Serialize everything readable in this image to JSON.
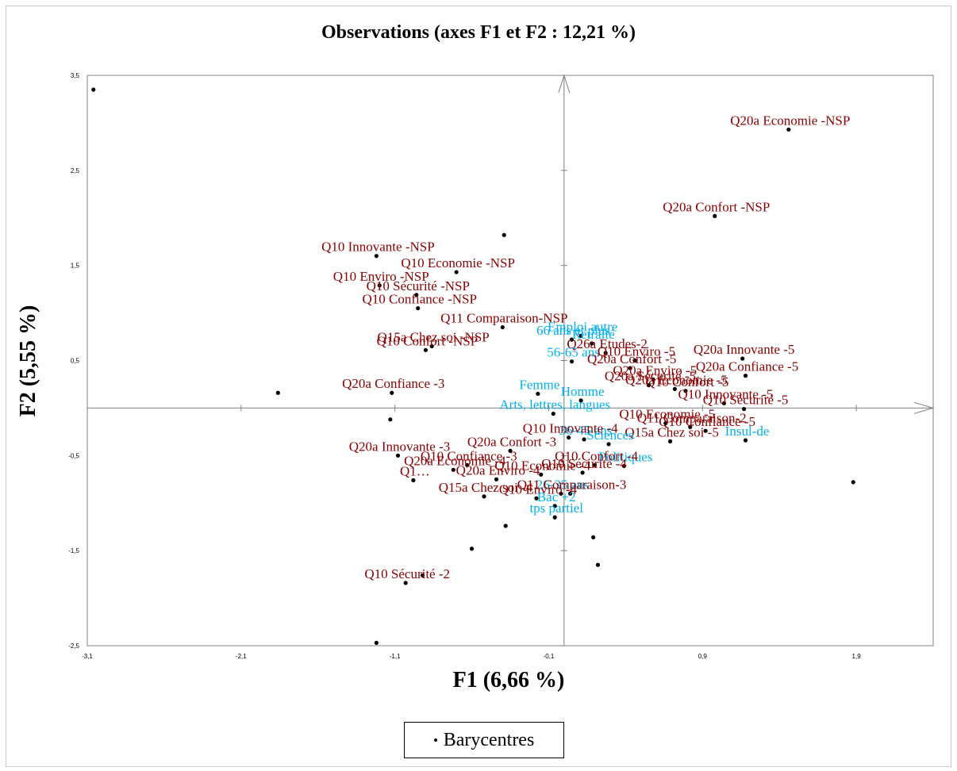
{
  "chart_data": {
    "type": "scatter",
    "title": "Observations (axes F1 et F2 : 12,21 %)",
    "xlabel": "F1 (6,66 %)",
    "ylabel": "F2 (5,55 %)",
    "xlim": [
      -3.1,
      2.4
    ],
    "ylim": [
      -2.5,
      3.5
    ],
    "x_ticks": [
      "-3,1",
      "-2,1",
      "-1,1",
      "-0,1",
      "0,9",
      "1,9"
    ],
    "y_ticks": [
      "3,5",
      "2,5",
      "1,5",
      "0,5",
      "-0,5",
      "-1,5",
      "-2,5"
    ],
    "legend": [
      "Barycentres"
    ],
    "legend_position": "bottom",
    "colors": {
      "point": "#000000",
      "question_label": "#8b0000",
      "profile_label": "#00b0f0"
    },
    "points": [
      {
        "x": -3.06,
        "y": 3.35,
        "label": ""
      },
      {
        "x": 1.46,
        "y": 2.93,
        "label": "Q20a Economie -NSP"
      },
      {
        "x": 0.98,
        "y": 2.02,
        "label": "Q20a Confort -NSP"
      },
      {
        "x": -0.39,
        "y": 1.82,
        "label": ""
      },
      {
        "x": -1.22,
        "y": 1.6,
        "label": "Q10 Innovante -NSP"
      },
      {
        "x": -0.7,
        "y": 1.43,
        "label": "Q10 Economie -NSP"
      },
      {
        "x": -1.2,
        "y": 1.29,
        "label": "Q10 Enviro -NSP"
      },
      {
        "x": -0.96,
        "y": 1.19,
        "label": "Q10 Sécurité -NSP"
      },
      {
        "x": -0.95,
        "y": 1.05,
        "label": "Q10 Confiance -NSP"
      },
      {
        "x": -0.4,
        "y": 0.85,
        "label": "Q11 Comparaison-NSP"
      },
      {
        "x": -0.86,
        "y": 0.65,
        "label": "Q15a Chez soi -NSP"
      },
      {
        "x": -0.9,
        "y": 0.61,
        "label": "Q10 Confort -NSP"
      },
      {
        "x": -1.12,
        "y": 0.16,
        "label": "Q20a Confiance -3"
      },
      {
        "x": -1.86,
        "y": 0.16,
        "label": ""
      },
      {
        "x": 0.11,
        "y": 0.76,
        "label": "Emploi autre"
      },
      {
        "x": 0.05,
        "y": 0.72,
        "label": "66 ans et plus"
      },
      {
        "x": 0.18,
        "y": 0.68,
        "label": "Retraité"
      },
      {
        "x": 0.27,
        "y": 0.58,
        "label": "Q26a Etudes-2"
      },
      {
        "x": 0.05,
        "y": 0.49,
        "label": "56-65 ans"
      },
      {
        "x": 0.46,
        "y": 0.5,
        "label": "Q10 Enviro -5"
      },
      {
        "x": 1.16,
        "y": 0.52,
        "label": "Q20a Innovante -5"
      },
      {
        "x": 0.43,
        "y": 0.42,
        "label": "Q20a Confort -5"
      },
      {
        "x": 0.58,
        "y": 0.3,
        "label": "Q20a Enviro -5"
      },
      {
        "x": 1.18,
        "y": 0.34,
        "label": "Q20a Confiance -5"
      },
      {
        "x": 0.55,
        "y": 0.24,
        "label": "Q20a Sécurité -5"
      },
      {
        "x": 0.72,
        "y": 0.2,
        "label": "Q20a Economie -5"
      },
      {
        "x": 0.79,
        "y": 0.18,
        "label": "Q10 Confort -5"
      },
      {
        "x": 1.04,
        "y": 0.05,
        "label": "Q10 Innovante -5"
      },
      {
        "x": 1.17,
        "y": -0.01,
        "label": "Q10 Sécurité -5"
      },
      {
        "x": 0.66,
        "y": -0.16,
        "label": "Q10 Economie -5"
      },
      {
        "x": 0.82,
        "y": -0.2,
        "label": "Q11 Comparaison-2"
      },
      {
        "x": 0.92,
        "y": -0.24,
        "label": "Q10 Confiance -5"
      },
      {
        "x": 0.69,
        "y": -0.35,
        "label": "Q15a Chez soi -5"
      },
      {
        "x": 1.18,
        "y": -0.34,
        "label": "Insul-de"
      },
      {
        "x": -0.17,
        "y": 0.15,
        "label": "Femme"
      },
      {
        "x": 0.11,
        "y": 0.08,
        "label": "Homme"
      },
      {
        "x": -0.07,
        "y": -0.06,
        "label": "Arts, lettres, langues"
      },
      {
        "x": 0.13,
        "y": -0.33,
        "label": "36-45 ans"
      },
      {
        "x": 0.29,
        "y": -0.38,
        "label": "Sciences"
      },
      {
        "x": 0.39,
        "y": -0.61,
        "label": "Politiques"
      },
      {
        "x": 0.03,
        "y": -0.31,
        "label": "Q10 Innovante -4"
      },
      {
        "x": -0.35,
        "y": -0.45,
        "label": "Q20a Confort -3"
      },
      {
        "x": -1.08,
        "y": -0.5,
        "label": "Q20a Innovante -3"
      },
      {
        "x": -0.63,
        "y": -0.6,
        "label": "Q10 Confiance -3"
      },
      {
        "x": 0.2,
        "y": -0.6,
        "label": "Q10 Confort -4"
      },
      {
        "x": -0.72,
        "y": -0.65,
        "label": "Q20a Economie -4"
      },
      {
        "x": 0.12,
        "y": -0.68,
        "label": "Q10 Sécurité -4"
      },
      {
        "x": -0.15,
        "y": -0.7,
        "label": "Q10 Economie -4"
      },
      {
        "x": -0.44,
        "y": -0.75,
        "label": "Q20a Enviro -4"
      },
      {
        "x": -0.98,
        "y": -0.76,
        "label": "Q1…"
      },
      {
        "x": -0.02,
        "y": -0.9,
        "label": "26-35 ans"
      },
      {
        "x": 0.04,
        "y": -0.9,
        "label": "Q11 Comparaison-3"
      },
      {
        "x": -0.52,
        "y": -0.93,
        "label": "Q15a Chez soi -4"
      },
      {
        "x": -0.18,
        "y": -0.95,
        "label": "Q10 Enviro -4"
      },
      {
        "x": -0.06,
        "y": -1.03,
        "label": "Bac +2"
      },
      {
        "x": -0.06,
        "y": -1.15,
        "label": "tps partiel"
      },
      {
        "x": 1.88,
        "y": -0.78,
        "label": ""
      },
      {
        "x": -1.13,
        "y": -0.12,
        "label": ""
      },
      {
        "x": -0.38,
        "y": -1.24,
        "label": ""
      },
      {
        "x": 0.19,
        "y": -1.36,
        "label": ""
      },
      {
        "x": -0.6,
        "y": -1.48,
        "label": ""
      },
      {
        "x": 0.22,
        "y": -1.65,
        "label": ""
      },
      {
        "x": -0.92,
        "y": -1.76,
        "label": ""
      },
      {
        "x": -1.03,
        "y": -1.84,
        "label": "Q10 Sécurité -2"
      },
      {
        "x": -1.22,
        "y": -2.47,
        "label": ""
      }
    ]
  }
}
